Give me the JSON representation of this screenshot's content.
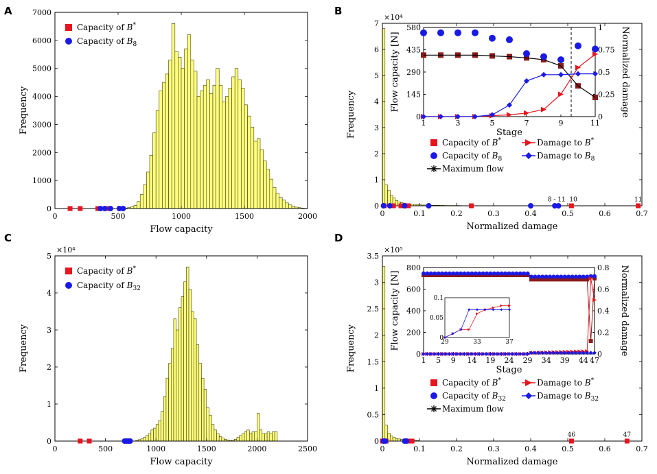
{
  "panels": [
    {
      "label": "A",
      "kind": "hist",
      "xlim": [
        0,
        2000
      ],
      "ylim": [
        0,
        7000
      ],
      "xticks": [
        0,
        500,
        1000,
        1500,
        2000
      ],
      "yticks": [
        0,
        1000,
        2000,
        3000,
        4000,
        5000,
        6000,
        7000
      ],
      "xlabel": "Flow capacity",
      "ylabel": "Frequency",
      "exponent": "",
      "bin_start": 500,
      "bin_width": 25,
      "bars": [
        5,
        10,
        20,
        35,
        60,
        110,
        250,
        500,
        850,
        1300,
        1900,
        2700,
        3500,
        4200,
        4500,
        4800,
        5300,
        6600,
        5600,
        5400,
        5000,
        5700,
        6200,
        5300,
        4900,
        4000,
        4200,
        4400,
        4600,
        4100,
        4400,
        5000,
        4400,
        3800,
        4000,
        4300,
        4700,
        5000,
        4600,
        4300,
        3700,
        3300,
        2900,
        2400,
        2500,
        2100,
        1700,
        1400,
        1050,
        750,
        550,
        400,
        300,
        200,
        130,
        80,
        50,
        30,
        15,
        8
      ],
      "legend": [
        {
          "marker": "square",
          "color": "#e8141e",
          "text": "Capacity of B*"
        },
        {
          "marker": "circle",
          "color": "#1a1ae6",
          "text": "Capacity of B8"
        }
      ],
      "red_points": [
        {
          "x": 120,
          "y": 0
        },
        {
          "x": 200,
          "y": 0
        },
        {
          "x": 340,
          "y": 0
        },
        {
          "x": 430,
          "y": 0
        }
      ],
      "blue_points": [
        {
          "x": 360,
          "y": 0
        },
        {
          "x": 395,
          "y": 0
        },
        {
          "x": 440,
          "y": 0
        },
        {
          "x": 510,
          "y": 0
        },
        {
          "x": 540,
          "y": 0
        }
      ],
      "annotations": []
    },
    {
      "label": "B",
      "kind": "hist",
      "xlim": [
        0,
        0.7
      ],
      "ylim": [
        0,
        7
      ],
      "xticks": [
        0,
        0.1,
        0.2,
        0.3,
        0.4,
        0.5,
        0.6,
        0.7
      ],
      "yticks": [
        0,
        1,
        2,
        3,
        4,
        5,
        6,
        7
      ],
      "xlabel": "Normalized damage",
      "ylabel": "Frequency",
      "exponent": "×10⁴",
      "bin_start": 0,
      "bin_width": 0.007,
      "bars": [
        6.8,
        0.8,
        0.6,
        0.4,
        0.3,
        0.2,
        0.15,
        0.12,
        0.1,
        0.08,
        0.07,
        0.06,
        0.05,
        0.04,
        0.04,
        0.03,
        0.03,
        0.03,
        0.02,
        0.02,
        0.02,
        0.02,
        0.015,
        0.015,
        0.01,
        0.01,
        0.01,
        0.01,
        0.01,
        0.01
      ],
      "legend": [
        {
          "marker": "square",
          "color": "#e8141e",
          "text": "Capacity of B*"
        },
        {
          "marker": "triangle-line",
          "color": "#e8141e",
          "text": "Damage to B*"
        },
        {
          "marker": "circle",
          "color": "#1a1ae6",
          "text": "Capacity of B8"
        },
        {
          "marker": "diamond-line",
          "color": "#1a1ae6",
          "text": "Damage to B8"
        },
        {
          "marker": "star-line",
          "color": "#000000",
          "text": "Maximum flow"
        }
      ],
      "red_points": [
        {
          "x": 0.005,
          "y": 0
        },
        {
          "x": 0.03,
          "y": 0
        },
        {
          "x": 0.05,
          "y": 0
        },
        {
          "x": 0.07,
          "y": 0
        },
        {
          "x": 0.24,
          "y": 0
        },
        {
          "x": 0.51,
          "y": 0
        },
        {
          "x": 0.69,
          "y": 0
        }
      ],
      "blue_points": [
        {
          "x": 0.003,
          "y": 0
        },
        {
          "x": 0.02,
          "y": 0
        },
        {
          "x": 0.06,
          "y": 0
        },
        {
          "x": 0.125,
          "y": 0
        },
        {
          "x": 0.4,
          "y": 0
        },
        {
          "x": 0.465,
          "y": 0
        },
        {
          "x": 0.475,
          "y": 0
        }
      ],
      "annotations": [
        {
          "text": "8 - 11",
          "x": 0.47,
          "y": 0.12
        },
        {
          "text": "10",
          "x": 0.515,
          "y": 0.12
        },
        {
          "text": "11",
          "x": 0.69,
          "y": 0.12
        }
      ]
    },
    {
      "label": "C",
      "kind": "hist",
      "xlim": [
        0,
        2500
      ],
      "ylim": [
        0,
        5
      ],
      "xticks": [
        0,
        500,
        1000,
        1500,
        2000,
        2500
      ],
      "yticks": [
        0,
        1,
        2,
        3,
        4,
        5
      ],
      "xlabel": "Flow capacity",
      "ylabel": "Frequency",
      "exponent": "×10⁴",
      "bin_start": 800,
      "bin_width": 25,
      "bars": [
        0.02,
        0.04,
        0.06,
        0.1,
        0.15,
        0.2,
        0.3,
        0.35,
        0.45,
        0.55,
        0.8,
        1.2,
        1.7,
        2.1,
        2.5,
        3.3,
        3.0,
        3.6,
        3.9,
        4.3,
        4.7,
        4.1,
        3.5,
        3.3,
        2.6,
        2.1,
        1.7,
        1.4,
        0.9,
        0.7,
        0.45,
        0.3,
        0.2,
        0.12,
        0.08,
        0.05,
        0.03,
        0.02,
        0.02,
        0.05,
        0.1,
        0.15,
        0.2,
        0.25,
        0.3,
        0.2,
        0.25,
        0.25,
        0.75,
        0.3,
        0.2,
        0.2,
        0.25,
        0.2,
        0.25,
        0.25
      ],
      "legend": [
        {
          "marker": "square",
          "color": "#e8141e",
          "text": "Capacity of B*"
        },
        {
          "marker": "circle",
          "color": "#1a1ae6",
          "text": "Capacity of B32"
        }
      ],
      "red_points": [
        {
          "x": 250,
          "y": 0
        },
        {
          "x": 340,
          "y": 0
        },
        {
          "x": 700,
          "y": 0
        }
      ],
      "blue_points": [
        {
          "x": 690,
          "y": 0
        },
        {
          "x": 710,
          "y": 0
        },
        {
          "x": 730,
          "y": 0
        },
        {
          "x": 745,
          "y": 0
        }
      ],
      "annotations": []
    },
    {
      "label": "D",
      "kind": "hist",
      "xlim": [
        0,
        0.7
      ],
      "ylim": [
        0,
        3.5
      ],
      "xticks": [
        0,
        0.1,
        0.2,
        0.3,
        0.4,
        0.5,
        0.6,
        0.7
      ],
      "yticks": [
        0,
        0.5,
        1,
        1.5,
        2,
        2.5,
        3,
        3.5
      ],
      "xlabel": "Normalized damage",
      "ylabel": "Frequency",
      "exponent": "×10⁵",
      "bin_start": 0,
      "bin_width": 0.007,
      "bars": [
        3.3,
        0.3,
        0.15,
        0.1,
        0.07,
        0.05,
        0.04,
        0.03,
        0.02,
        0.02,
        0.01,
        0.01,
        0.01,
        0.01
      ],
      "legend": [
        {
          "marker": "square",
          "color": "#e8141e",
          "text": "Capacity of B*"
        },
        {
          "marker": "triangle-line",
          "color": "#e8141e",
          "text": "Damage to B*"
        },
        {
          "marker": "circle",
          "color": "#1a1ae6",
          "text": "Capacity of B32"
        },
        {
          "marker": "diamond-line",
          "color": "#1a1ae6",
          "text": "Damage to B32"
        },
        {
          "marker": "star-line",
          "color": "#000000",
          "text": "Maximum flow"
        }
      ],
      "red_points": [
        {
          "x": 0.0,
          "y": 0
        },
        {
          "x": 0.01,
          "y": 0
        },
        {
          "x": 0.07,
          "y": 0
        },
        {
          "x": 0.08,
          "y": 0
        },
        {
          "x": 0.51,
          "y": 0
        },
        {
          "x": 0.66,
          "y": 0
        }
      ],
      "blue_points": [
        {
          "x": 0.003,
          "y": 0
        },
        {
          "x": 0.008,
          "y": 0
        },
        {
          "x": 0.06,
          "y": 0
        },
        {
          "x": 0.065,
          "y": 0
        }
      ],
      "annotations": [
        {
          "text": "46",
          "x": 0.51,
          "y": 0.06
        },
        {
          "text": "47",
          "x": 0.66,
          "y": 0.06
        }
      ]
    }
  ],
  "insets": [
    {
      "parent": "B",
      "xlim": [
        1,
        11
      ],
      "ylim_left": [
        0,
        580
      ],
      "ylim_right": [
        0,
        1
      ],
      "xticks": [
        1,
        3,
        5,
        7,
        9,
        11
      ],
      "yticks_left": [
        0,
        145,
        290,
        435,
        580
      ],
      "yticks_right": [
        0,
        0.25,
        0.5,
        0.75,
        1
      ],
      "ytick_labels_right": [
        "0",
        "0.25",
        "0.5",
        "0.75",
        "1"
      ],
      "xlabel": "Stage",
      "ylabel_left": "Flow capacity [N]",
      "ylabel_right": "Normalized damage",
      "vline_x": 9.6,
      "stages": [
        1,
        2,
        3,
        4,
        5,
        6,
        7,
        8,
        9,
        10,
        11
      ],
      "series": [
        {
          "name": "Capacity of B*",
          "axis": "left",
          "color": "#8b1a1a",
          "marker": "square",
          "line": false,
          "values": [
            400,
            400,
            400,
            400,
            395,
            390,
            382,
            370,
            330,
            200,
            125
          ]
        },
        {
          "name": "Maximum flow",
          "axis": "left",
          "color": "#000000",
          "marker": "none",
          "line": true,
          "values": [
            400,
            400,
            400,
            400,
            395,
            390,
            382,
            370,
            330,
            200,
            125
          ]
        },
        {
          "name": "Capacity of B8",
          "axis": "left",
          "color": "#1a1ae6",
          "marker": "circle",
          "line": false,
          "values": [
            545,
            545,
            545,
            545,
            510,
            500,
            410,
            390,
            370,
            460,
            440
          ]
        },
        {
          "name": "Damage to B*",
          "axis": "right",
          "color": "#e8141e",
          "marker": "triangle",
          "line": true,
          "values": [
            0,
            0,
            0,
            0,
            0.01,
            0.02,
            0.04,
            0.08,
            0.25,
            0.55,
            0.7
          ]
        },
        {
          "name": "Damage to B8",
          "axis": "right",
          "color": "#1a1ae6",
          "marker": "diamond",
          "line": true,
          "values": [
            0,
            0,
            0,
            0,
            0.02,
            0.13,
            0.4,
            0.47,
            0.47,
            0.48,
            0.48
          ]
        }
      ]
    },
    {
      "parent": "D",
      "xlim": [
        1,
        47
      ],
      "ylim_left": [
        0,
        800
      ],
      "ylim_right": [
        0,
        0.8
      ],
      "xticks": [
        1,
        5,
        9,
        14,
        19,
        24,
        29,
        34,
        39,
        44,
        47
      ],
      "yticks_left": [
        0,
        200,
        400,
        600,
        800
      ],
      "yticks_right": [
        0,
        0.2,
        0.4,
        0.6,
        0.8
      ],
      "ytick_labels_right": [
        "0",
        "0.2",
        "0.4",
        "0.6",
        "0.8"
      ],
      "xlabel": "Stage",
      "ylabel_left": "Flow capacity [N]",
      "ylabel_right": "Normalized damage",
      "stage_count": 47,
      "series": [
        {
          "name": "Capacity of B*",
          "axis": "left",
          "color": "#8b1a1a",
          "marker": "square",
          "line": true,
          "kind": "d_red_cap"
        },
        {
          "name": "Capacity of B32",
          "axis": "left",
          "color": "#1a1ae6",
          "marker": "circle",
          "line": true,
          "kind": "d_blue_cap"
        },
        {
          "name": "Damage to B*",
          "axis": "right",
          "color": "#e8141e",
          "marker": "triangle",
          "line": true,
          "kind": "d_red_dmg"
        },
        {
          "name": "Damage to B32",
          "axis": "right",
          "color": "#1a1ae6",
          "marker": "diamond",
          "line": true,
          "kind": "d_blue_dmg"
        }
      ],
      "subinset": {
        "xlim": [
          29,
          37
        ],
        "ylim": [
          0,
          0.1
        ],
        "xticks": [
          29,
          33,
          37
        ],
        "yticks": [
          0,
          0.05,
          0.1
        ],
        "stages": [
          29,
          30,
          31,
          32,
          33,
          34,
          35,
          36,
          37
        ],
        "red": [
          0,
          0.01,
          0.02,
          0.02,
          0.06,
          0.07,
          0.075,
          0.08,
          0.08
        ],
        "blue": [
          0,
          0.01,
          0.02,
          0.07,
          0.07,
          0.07,
          0.07,
          0.07,
          0.07
        ]
      }
    }
  ],
  "chart_data": [
    {
      "type": "bar",
      "panel": "A",
      "title": "",
      "xlabel": "Flow capacity",
      "ylabel": "Frequency",
      "xlim": [
        0,
        2000
      ],
      "ylim": [
        0,
        7000
      ],
      "note": "histogram bins of width 25 starting at 500; see panels[0].bars",
      "legend": [
        "Capacity of B*",
        "Capacity of B8"
      ]
    },
    {
      "type": "bar",
      "panel": "B",
      "title": "",
      "xlabel": "Normalized damage",
      "ylabel": "Frequency (×10⁴)",
      "xlim": [
        0,
        0.7
      ],
      "ylim": [
        0,
        7
      ],
      "legend": [
        "Capacity of B*",
        "Damage to B*",
        "Capacity of B8",
        "Damage to B8",
        "Maximum flow"
      ],
      "inset": {
        "type": "line",
        "xlabel": "Stage",
        "ylabel": "Flow capacity [N]",
        "ylabel_right": "Normalized damage"
      }
    },
    {
      "type": "bar",
      "panel": "C",
      "title": "",
      "xlabel": "Flow capacity",
      "ylabel": "Frequency (×10⁴)",
      "xlim": [
        0,
        2500
      ],
      "ylim": [
        0,
        5
      ],
      "legend": [
        "Capacity of B*",
        "Capacity of B32"
      ]
    },
    {
      "type": "bar",
      "panel": "D",
      "title": "",
      "xlabel": "Normalized damage",
      "ylabel": "Frequency (×10⁵)",
      "xlim": [
        0,
        0.7
      ],
      "ylim": [
        0,
        3.5
      ],
      "legend": [
        "Capacity of B*",
        "Damage to B*",
        "Capacity of B32",
        "Damage to B32",
        "Maximum flow"
      ],
      "inset": {
        "type": "line",
        "xlabel": "Stage",
        "ylabel": "Flow capacity [N]",
        "ylabel_right": "Normalized damage"
      }
    }
  ]
}
